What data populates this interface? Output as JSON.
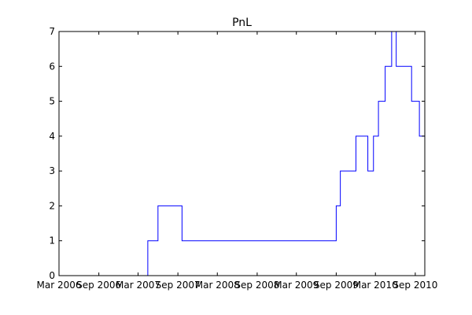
{
  "chart_data": {
    "type": "line",
    "title": "PnL",
    "xlabel": "",
    "ylabel": "",
    "line_style": "step",
    "grid": false,
    "legend": "none",
    "colors": {
      "line": "#0000ff",
      "axes": "#000000",
      "background": "#ffffff"
    },
    "xlim": [
      "2006-03-01",
      "2010-10-15"
    ],
    "ylim": [
      0,
      7
    ],
    "x_ticks": [
      {
        "value": "2006-03-01",
        "label": "Mar 2006"
      },
      {
        "value": "2006-09-01",
        "label": "Sep 2006"
      },
      {
        "value": "2007-03-01",
        "label": "Mar 2007"
      },
      {
        "value": "2007-09-01",
        "label": "Sep 2007"
      },
      {
        "value": "2008-03-01",
        "label": "Mar 2008"
      },
      {
        "value": "2008-09-01",
        "label": "Sep 2008"
      },
      {
        "value": "2009-03-01",
        "label": "Mar 2009"
      },
      {
        "value": "2009-09-01",
        "label": "Sep 2009"
      },
      {
        "value": "2010-03-01",
        "label": "Mar 2010"
      },
      {
        "value": "2010-09-01",
        "label": "Sep 2010"
      }
    ],
    "y_ticks": [
      0,
      1,
      2,
      3,
      4,
      5,
      6,
      7
    ],
    "series": [
      {
        "x": [
          "2006-03-01",
          "2007-04-15",
          "2007-06-01",
          "2007-09-20",
          "2009-09-01",
          "2009-09-20",
          "2009-12-01",
          "2010-01-25",
          "2010-02-20",
          "2010-03-15",
          "2010-04-15",
          "2010-05-15",
          "2010-06-05",
          "2010-06-25",
          "2010-08-15",
          "2010-09-20"
        ],
        "y": [
          0,
          1,
          2,
          1,
          2,
          3,
          4,
          3,
          4,
          5,
          6,
          7,
          6,
          6,
          5,
          4
        ]
      }
    ]
  }
}
